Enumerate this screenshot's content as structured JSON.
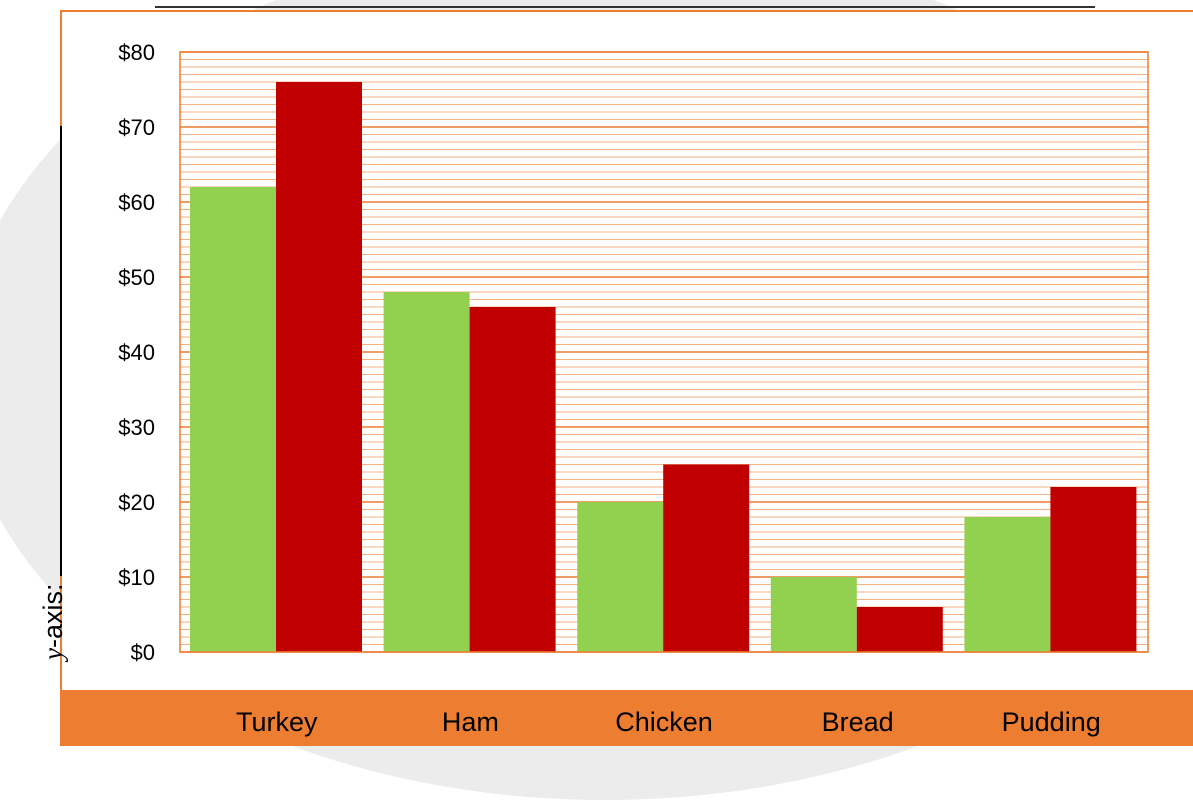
{
  "y_axis_prompt": "y-axis: ",
  "y_axis_prompt_parts": {
    "var": "y",
    "rest": "-axis: "
  },
  "colors": {
    "series1": "#92d050",
    "series2": "#c00000",
    "grid_major": "#ed7d31",
    "grid_minor": "#f4b183",
    "footer_band": "#ed7d31"
  },
  "chart_data": {
    "type": "bar",
    "categories": [
      "Turkey",
      "Ham",
      "Chicken",
      "Bread",
      "Pudding"
    ],
    "series": [
      {
        "values": [
          62,
          48,
          20,
          10,
          18
        ],
        "color": "#92d050"
      },
      {
        "values": [
          76,
          46,
          25,
          6,
          22
        ],
        "color": "#c00000"
      }
    ],
    "yticks": [
      "$0",
      "$10",
      "$20",
      "$30",
      "$40",
      "$50",
      "$60",
      "$70",
      "$80"
    ],
    "ylim": [
      0,
      80
    ],
    "grid": true,
    "legend": "none"
  }
}
